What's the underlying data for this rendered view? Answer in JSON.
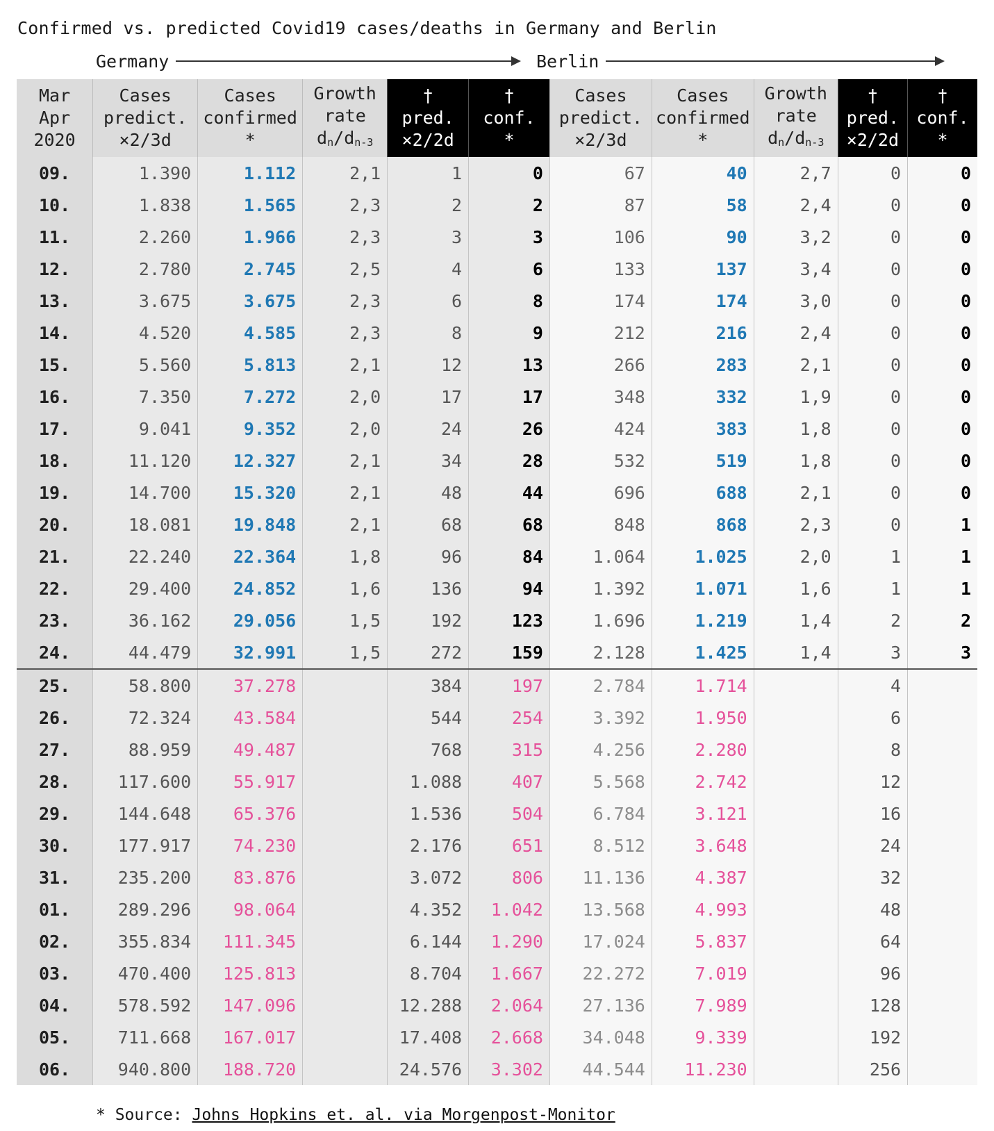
{
  "title": "Confirmed vs. predicted Covid19 cases/deaths in Germany and Berlin",
  "regions": {
    "germany": "Germany",
    "berlin": "Berlin"
  },
  "headers": {
    "date": [
      "Mar",
      "Apr",
      "2020"
    ],
    "de_pred": [
      "Cases",
      "predict.",
      "×2/3d"
    ],
    "de_conf": [
      "Cases",
      "confirmed",
      "*"
    ],
    "de_growth": [
      "Growth",
      "rate",
      "dn/dn-3"
    ],
    "de_death_pred": [
      "†",
      "pred.",
      "×2/2d"
    ],
    "de_death_conf": [
      "†",
      "conf.",
      "*"
    ],
    "be_pred": [
      "Cases",
      "predict.",
      "×2/3d"
    ],
    "be_conf": [
      "Cases",
      "confirmed",
      "*"
    ],
    "be_growth": [
      "Growth",
      "rate",
      "dn/dn-3"
    ],
    "be_death_pred": [
      "†",
      "pred.",
      "×2/2d"
    ],
    "be_death_conf": [
      "†",
      "conf.",
      "*"
    ]
  },
  "rows": [
    [
      "09.",
      "1.390",
      "1.112",
      "2,1",
      "1",
      "0",
      "67",
      "40",
      "2,7",
      "0",
      "0"
    ],
    [
      "10.",
      "1.838",
      "1.565",
      "2,3",
      "2",
      "2",
      "87",
      "58",
      "2,4",
      "0",
      "0"
    ],
    [
      "11.",
      "2.260",
      "1.966",
      "2,3",
      "3",
      "3",
      "106",
      "90",
      "3,2",
      "0",
      "0"
    ],
    [
      "12.",
      "2.780",
      "2.745",
      "2,5",
      "4",
      "6",
      "133",
      "137",
      "3,4",
      "0",
      "0"
    ],
    [
      "13.",
      "3.675",
      "3.675",
      "2,3",
      "6",
      "8",
      "174",
      "174",
      "3,0",
      "0",
      "0"
    ],
    [
      "14.",
      "4.520",
      "4.585",
      "2,3",
      "8",
      "9",
      "212",
      "216",
      "2,4",
      "0",
      "0"
    ],
    [
      "15.",
      "5.560",
      "5.813",
      "2,1",
      "12",
      "13",
      "266",
      "283",
      "2,1",
      "0",
      "0"
    ],
    [
      "16.",
      "7.350",
      "7.272",
      "2,0",
      "17",
      "17",
      "348",
      "332",
      "1,9",
      "0",
      "0"
    ],
    [
      "17.",
      "9.041",
      "9.352",
      "2,0",
      "24",
      "26",
      "424",
      "383",
      "1,8",
      "0",
      "0"
    ],
    [
      "18.",
      "11.120",
      "12.327",
      "2,1",
      "34",
      "28",
      "532",
      "519",
      "1,8",
      "0",
      "0"
    ],
    [
      "19.",
      "14.700",
      "15.320",
      "2,1",
      "48",
      "44",
      "696",
      "688",
      "2,1",
      "0",
      "0"
    ],
    [
      "20.",
      "18.081",
      "19.848",
      "2,1",
      "68",
      "68",
      "848",
      "868",
      "2,3",
      "0",
      "1"
    ],
    [
      "21.",
      "22.240",
      "22.364",
      "1,8",
      "96",
      "84",
      "1.064",
      "1.025",
      "2,0",
      "1",
      "1"
    ],
    [
      "22.",
      "29.400",
      "24.852",
      "1,6",
      "136",
      "94",
      "1.392",
      "1.071",
      "1,6",
      "1",
      "1"
    ],
    [
      "23.",
      "36.162",
      "29.056",
      "1,5",
      "192",
      "123",
      "1.696",
      "1.219",
      "1,4",
      "2",
      "2"
    ],
    [
      "24.",
      "44.479",
      "32.991",
      "1,5",
      "272",
      "159",
      "2.128",
      "1.425",
      "1,4",
      "3",
      "3"
    ]
  ],
  "projected_rows": [
    [
      "25.",
      "58.800",
      "37.278",
      "",
      "384",
      "197",
      "2.784",
      "1.714",
      "",
      "4",
      ""
    ],
    [
      "26.",
      "72.324",
      "43.584",
      "",
      "544",
      "254",
      "3.392",
      "1.950",
      "",
      "6",
      ""
    ],
    [
      "27.",
      "88.959",
      "49.487",
      "",
      "768",
      "315",
      "4.256",
      "2.280",
      "",
      "8",
      ""
    ],
    [
      "28.",
      "117.600",
      "55.917",
      "",
      "1.088",
      "407",
      "5.568",
      "2.742",
      "",
      "12",
      ""
    ],
    [
      "29.",
      "144.648",
      "65.376",
      "",
      "1.536",
      "504",
      "6.784",
      "3.121",
      "",
      "16",
      ""
    ],
    [
      "30.",
      "177.917",
      "74.230",
      "",
      "2.176",
      "651",
      "8.512",
      "3.648",
      "",
      "24",
      ""
    ],
    [
      "31.",
      "235.200",
      "83.876",
      "",
      "3.072",
      "806",
      "11.136",
      "4.387",
      "",
      "32",
      ""
    ],
    [
      "01.",
      "289.296",
      "98.064",
      "",
      "4.352",
      "1.042",
      "13.568",
      "4.993",
      "",
      "48",
      ""
    ],
    [
      "02.",
      "355.834",
      "111.345",
      "",
      "6.144",
      "1.290",
      "17.024",
      "5.837",
      "",
      "64",
      ""
    ],
    [
      "03.",
      "470.400",
      "125.813",
      "",
      "8.704",
      "1.667",
      "22.272",
      "7.019",
      "",
      "96",
      ""
    ],
    [
      "04.",
      "578.592",
      "147.096",
      "",
      "12.288",
      "2.064",
      "27.136",
      "7.989",
      "",
      "128",
      ""
    ],
    [
      "05.",
      "711.668",
      "167.017",
      "",
      "17.408",
      "2.668",
      "34.048",
      "9.339",
      "",
      "192",
      ""
    ],
    [
      "06.",
      "940.800",
      "188.720",
      "",
      "24.576",
      "3.302",
      "44.544",
      "11.230",
      "",
      "256",
      ""
    ]
  ],
  "footnote": {
    "prefix": "* Source: ",
    "link_text": "Johns Hopkins et. al. via Morgenpost-Monitor"
  },
  "colors": {
    "confirmed": "#1f78b4",
    "projected": "#e5519a",
    "header_dark": "#000000",
    "header_light": "#dcdcdc"
  }
}
